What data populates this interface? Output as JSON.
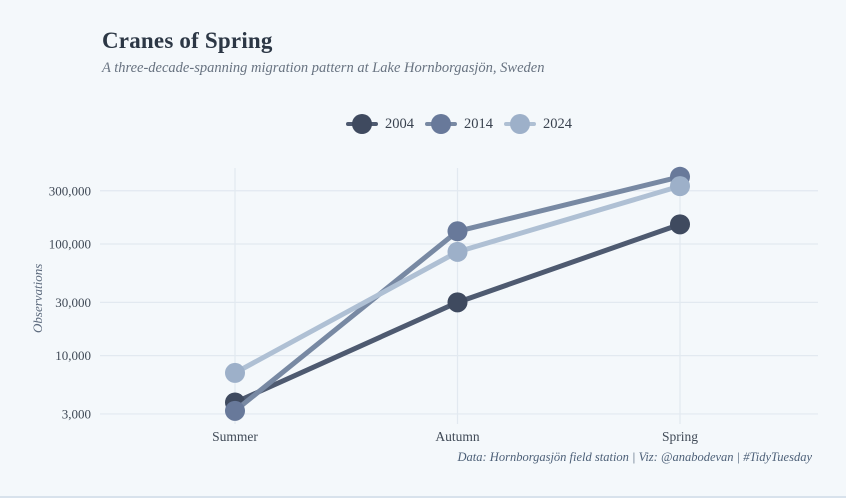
{
  "header": {
    "title": "Cranes of Spring",
    "subtitle": "A three-decade-spanning migration pattern at Lake Hornborgasjön, Sweden"
  },
  "footer": {
    "caption": "Data: Hornborgasjön field station | Viz: @anabodevan | #TidyTuesday"
  },
  "colors": {
    "background": "#f4f8fb",
    "gridline": "#e2e9f0",
    "title_text": "#2c3745",
    "subtitle_text": "#687381",
    "tick_text": "#3f4956",
    "caption_text": "#4d6078"
  },
  "chart_data": {
    "type": "line",
    "title": "Cranes of Spring",
    "subtitle": "A three-decade-spanning migration pattern at Lake Hornborgasjön, Sweden",
    "categories": [
      "Summer",
      "Autumn",
      "Spring"
    ],
    "xlabel": "",
    "ylabel": "Observations",
    "yscale": "log10",
    "ylim": [
      2500,
      500000
    ],
    "grid": true,
    "legend_position": "top-center",
    "yticks": {
      "values": [
        300000,
        100000,
        30000,
        10000,
        3000
      ],
      "labels": [
        "300,000",
        "100,000",
        "30,000",
        "10,000",
        "3,000"
      ]
    },
    "series": [
      {
        "name": "2004",
        "values": [
          3800,
          30000,
          150000
        ],
        "color": "#4e5a70",
        "point_color": "#3f4a5f"
      },
      {
        "name": "2014",
        "values": [
          3200,
          130000,
          400000
        ],
        "color": "#7889a3",
        "point_color": "#68799a"
      },
      {
        "name": "2024",
        "values": [
          7000,
          85000,
          330000
        ],
        "color": "#afc0d4",
        "point_color": "#9db0c9"
      }
    ]
  }
}
